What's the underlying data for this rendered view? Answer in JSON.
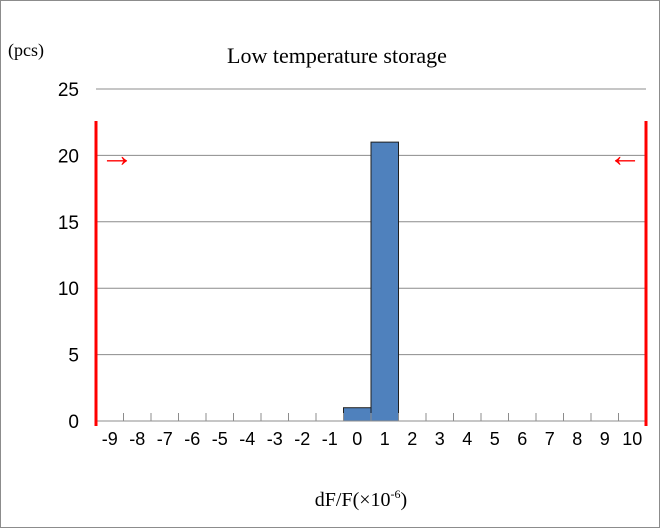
{
  "chart_data": {
    "type": "bar",
    "title": "Low temperature storage",
    "ylabel": "(pcs)",
    "xlabel_main": "dF/F(×10",
    "xlabel_exp": "-6",
    "xlabel_close": ")",
    "categories": [
      "-9",
      "-8",
      "-7",
      "-6",
      "-5",
      "-4",
      "-3",
      "-2",
      "-1",
      "0",
      "1",
      "2",
      "3",
      "4",
      "5",
      "6",
      "7",
      "8",
      "9",
      "10"
    ],
    "values": [
      0,
      0,
      0,
      0,
      0,
      0,
      0,
      0,
      0,
      1,
      21,
      0,
      0,
      0,
      0,
      0,
      0,
      0,
      0,
      0
    ],
    "ylim": [
      0,
      25
    ],
    "yticks": [
      "0",
      "5",
      "10",
      "15",
      "20",
      "25"
    ],
    "grid": true,
    "bar_color": "#4f81bd",
    "limit_lines": {
      "color": "#ff0000",
      "lower": -9.5,
      "upper": 10.5,
      "arrow_level": 20,
      "lower_arrow": "→",
      "upper_arrow": "←"
    }
  }
}
